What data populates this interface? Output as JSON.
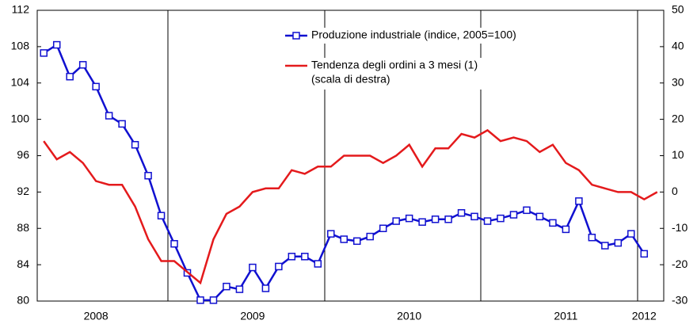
{
  "chart_data": {
    "type": "line",
    "categories": [
      null,
      null,
      null,
      null,
      "2008",
      null,
      null,
      null,
      null,
      null,
      null,
      null,
      null,
      null,
      null,
      null,
      "2009",
      null,
      null,
      null,
      null,
      null,
      null,
      null,
      null,
      null,
      null,
      null,
      "2010",
      null,
      null,
      null,
      null,
      null,
      null,
      null,
      null,
      null,
      null,
      null,
      "2011",
      null,
      null,
      null,
      null,
      null,
      "2012",
      null
    ],
    "series": [
      {
        "name": "Produzione industriale (indice, 2005=100)",
        "color": "#1010d0",
        "marker": "square",
        "values": [
          107.3,
          108.2,
          104.7,
          106.0,
          103.6,
          100.4,
          99.5,
          97.2,
          93.8,
          89.4,
          86.3,
          83.1,
          80.1,
          80.1,
          81.6,
          81.3,
          83.7,
          81.4,
          83.8,
          84.9,
          84.9,
          84.1,
          87.4,
          86.8,
          86.6,
          87.1,
          88.0,
          88.8,
          89.1,
          88.7,
          89.0,
          89.0,
          89.7,
          89.3,
          88.8,
          89.1,
          89.5,
          90.0,
          89.3,
          88.6,
          87.9,
          91.0,
          87.0,
          86.1,
          86.4,
          87.4,
          85.2,
          null
        ]
      },
      {
        "name": "Tendenza degli ordini a 3 mesi (1)",
        "note": "(scala di destra)",
        "color": "#e41a1c",
        "axis": "y2",
        "values": [
          14,
          9,
          11,
          8,
          3,
          2,
          2,
          -4,
          -13,
          -19,
          -19,
          -22,
          -25,
          -13,
          -6,
          -4,
          0,
          1,
          1,
          6,
          5,
          7,
          7,
          10,
          10,
          10,
          8,
          10,
          13,
          7,
          12,
          12,
          16,
          15,
          17,
          14,
          15,
          14,
          11,
          13,
          8,
          6,
          2,
          1,
          0,
          0,
          -2,
          0
        ]
      }
    ],
    "ylim": [
      80,
      112
    ],
    "yticks": [
      80,
      84,
      88,
      92,
      96,
      100,
      104,
      108,
      112
    ],
    "y2lim": [
      -30,
      50
    ],
    "y2ticks": [
      -30,
      -20,
      -10,
      0,
      10,
      20,
      30,
      40,
      50
    ]
  }
}
